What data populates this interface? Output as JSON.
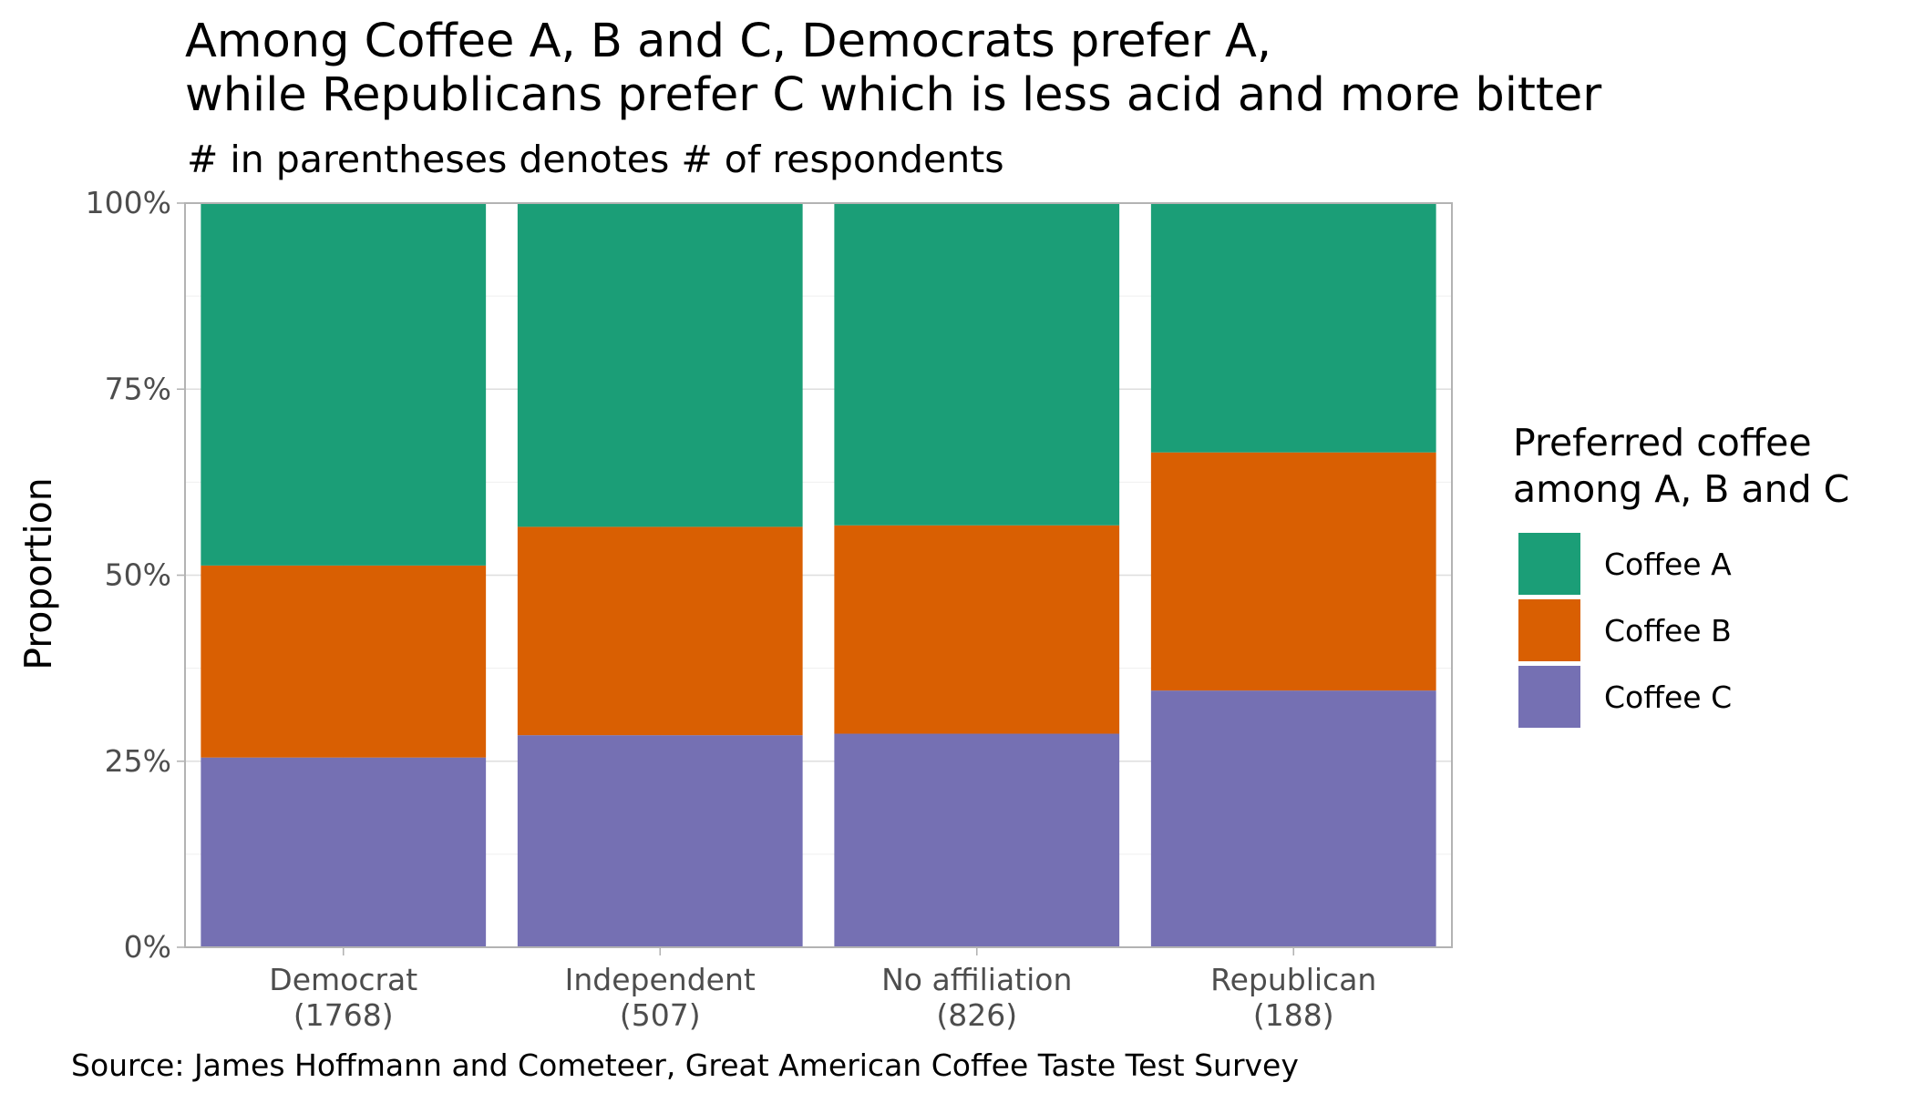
{
  "chart_data": {
    "type": "bar",
    "stacked": true,
    "title_lines": [
      "Among Coffee A, B and C, Democrats prefer A,",
      "while Republicans prefer C which is less acid and more bitter"
    ],
    "subtitle": "# in parentheses denotes # of respondents",
    "caption": "Source: James Hoffmann and Cometeer, Great American Coffee Taste Test Survey",
    "xlabel": "",
    "ylabel": "Proportion",
    "ylim": [
      0,
      1
    ],
    "y_ticks": [
      {
        "value": 0,
        "label": "0%"
      },
      {
        "value": 0.25,
        "label": "25%"
      },
      {
        "value": 0.5,
        "label": "50%"
      },
      {
        "value": 0.75,
        "label": "75%"
      },
      {
        "value": 1,
        "label": "100%"
      }
    ],
    "grid": true,
    "categories": [
      {
        "name": "Democrat",
        "count_label": "(1768)"
      },
      {
        "name": "Independent",
        "count_label": "(507)"
      },
      {
        "name": "No affiliation",
        "count_label": "(826)"
      },
      {
        "name": "Republican",
        "count_label": "(188)"
      }
    ],
    "series": [
      {
        "name": "Coffee C",
        "color": "#7570b3",
        "values": [
          0.255,
          0.285,
          0.287,
          0.345
        ]
      },
      {
        "name": "Coffee B",
        "color": "#d95f02",
        "values": [
          0.258,
          0.28,
          0.28,
          0.32
        ]
      },
      {
        "name": "Coffee A",
        "color": "#1b9e77",
        "values": [
          0.487,
          0.435,
          0.433,
          0.335
        ]
      }
    ],
    "legend": {
      "title_lines": [
        "Preferred coffee",
        "among A, B and C"
      ],
      "placement": "right",
      "order": [
        "Coffee A",
        "Coffee B",
        "Coffee C"
      ]
    }
  }
}
